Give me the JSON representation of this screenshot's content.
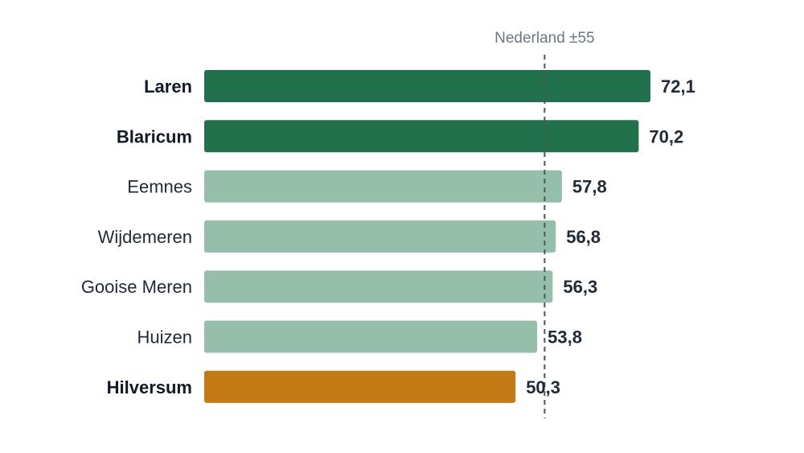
{
  "chart_data": {
    "type": "bar",
    "orientation": "horizontal",
    "categories": [
      "Laren",
      "Blaricum",
      "Eemnes",
      "Wijdemeren",
      "Gooise Meren",
      "Huizen",
      "Hilversum"
    ],
    "values": [
      72.1,
      70.2,
      57.8,
      56.8,
      56.3,
      53.8,
      50.3
    ],
    "value_labels": [
      "72,1",
      "70,2",
      "57,8",
      "56,8",
      "56,3",
      "53,8",
      "50,3"
    ],
    "emphasized": [
      true,
      true,
      false,
      false,
      false,
      false,
      true
    ],
    "bar_colors": [
      "#20714c",
      "#20714c",
      "#95bfaa",
      "#95bfaa",
      "#95bfaa",
      "#95bfaa",
      "#c47a14"
    ],
    "xlim": [
      0,
      72.1
    ],
    "reference_line": {
      "label": "Nederland ±55",
      "value": 55
    },
    "grid": false,
    "legend": "none"
  }
}
